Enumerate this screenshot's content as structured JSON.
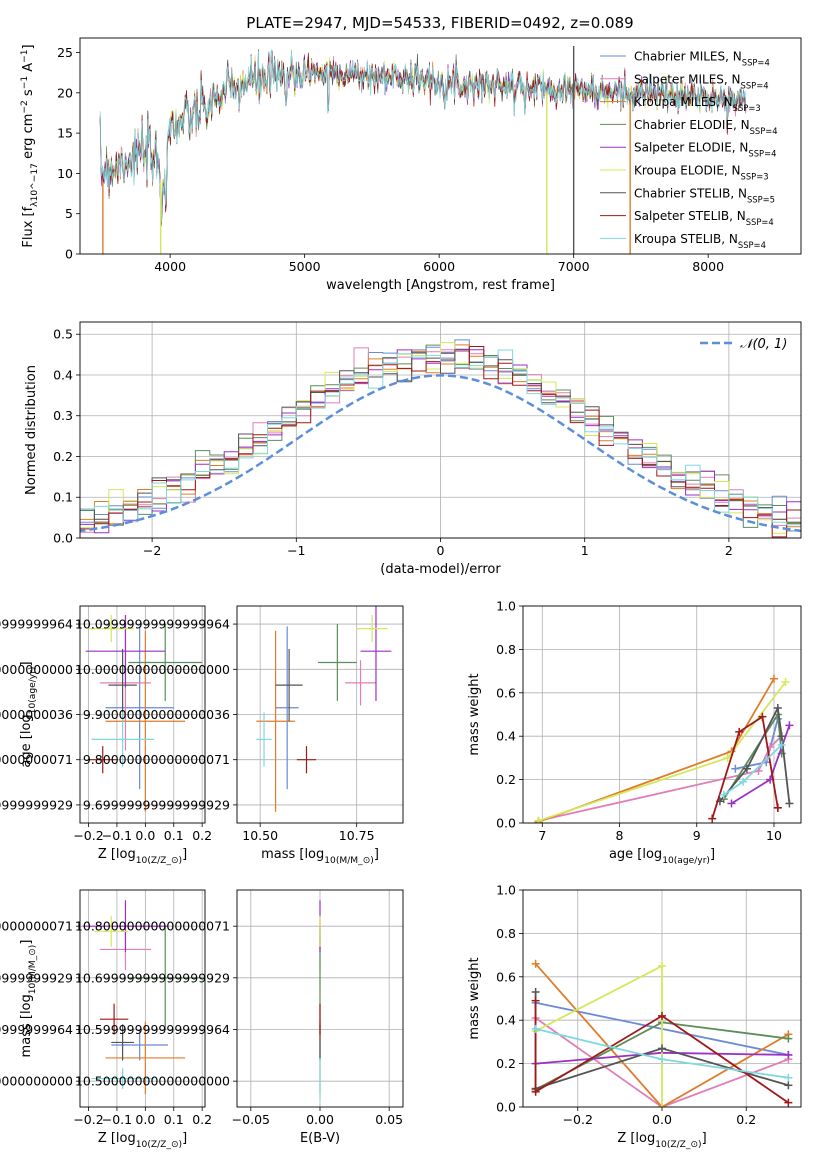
{
  "figure_title": "PLATE=2947, MJD=54533, FIBERID=0492, z=0.089",
  "colors": {
    "Chabrier MILES": "#6a8bd6",
    "Salpeter MILES": "#e07fb6",
    "Kroupa MILES": "#e07c2a",
    "Chabrier ELODIE": "#5c8c5c",
    "Salpeter ELODIE": "#9b30c6",
    "Kroupa ELODIE": "#d4e85a",
    "Chabrier STELIB": "#555555",
    "Salpeter STELIB": "#a01818",
    "Kroupa STELIB": "#7fd8e0",
    "normal": "#5b8fd9"
  },
  "chart_data": [
    {
      "id": "spectrum",
      "type": "line",
      "xlabel": "wavelength [Angstrom, rest frame]",
      "ylabel": "Flux [f_λ10^-17 erg cm^-2 s^-1 A^-1]",
      "xlim": [
        3330,
        8690
      ],
      "ylim": [
        0,
        26.8
      ],
      "xticks": [
        4000,
        5000,
        6000,
        7000,
        8000
      ],
      "yticks": [
        0,
        5,
        10,
        15,
        20,
        25
      ],
      "legend_placement": "upper right",
      "legend": [
        {
          "model": "Chabrier MILES",
          "nssp": "4"
        },
        {
          "model": "Salpeter MILES",
          "nssp": "4"
        },
        {
          "model": "Kroupa MILES",
          "nssp": "3"
        },
        {
          "model": "Chabrier ELODIE",
          "nssp": "4"
        },
        {
          "model": "Salpeter ELODIE",
          "nssp": "4"
        },
        {
          "model": "Kroupa ELODIE",
          "nssp": "3"
        },
        {
          "model": "Chabrier STELIB",
          "nssp": "5"
        },
        {
          "model": "Salpeter STELIB",
          "nssp": "4"
        },
        {
          "model": "Kroupa STELIB",
          "nssp": "4"
        }
      ],
      "continuum_x": [
        3480,
        3600,
        3700,
        3800,
        3900,
        3950,
        4000,
        4100,
        4200,
        4300,
        4400,
        4600,
        4800,
        5000,
        5200,
        5500,
        5800,
        6000,
        6200,
        6500,
        6800,
        7000,
        7200,
        7400,
        7600,
        7800,
        8000,
        8200
      ],
      "continuum_y": [
        10.5,
        11,
        12,
        12.5,
        11.5,
        9,
        16,
        16.5,
        17.5,
        18.5,
        20,
        21.5,
        22,
        22.5,
        22.5,
        22,
        22,
        21.5,
        21,
        21,
        20.5,
        20.5,
        20,
        20,
        20,
        19.5,
        19.5,
        19
      ]
    },
    {
      "id": "residuals",
      "type": "histogram",
      "xlabel": "(data-model)/error",
      "ylabel": "Normed distribution",
      "xlim": [
        -2.5,
        2.5
      ],
      "ylim": [
        0,
        0.53
      ],
      "xticks": [
        -2,
        -1,
        0,
        1,
        2
      ],
      "yticks": [
        0,
        0.1,
        0.2,
        0.3,
        0.4,
        0.5
      ],
      "legend": "N(0,1)",
      "bin_edges_start": -2.5,
      "bin_width": 0.1,
      "reference": {
        "type": "gaussian",
        "mean": 0,
        "sigma": 1
      }
    },
    {
      "id": "age_vs_Z",
      "type": "errorbar",
      "xlabel": "Z [log10(Z/Z⊙)]",
      "ylabel": "age [log10(age/yr)]",
      "xlim": [
        -0.23,
        0.21
      ],
      "ylim": [
        9.66,
        10.14
      ],
      "xticks": [
        -0.2,
        -0.1,
        0.0,
        0.1,
        0.2
      ],
      "yticks": [
        9.7,
        9.8,
        9.9,
        10.0,
        10.1
      ],
      "points": [
        {
          "model": "Chabrier MILES",
          "x": -0.02,
          "xerr": 0.12,
          "y": 9.915,
          "yerr": 0.18
        },
        {
          "model": "Salpeter MILES",
          "x": -0.07,
          "xerr": 0.09,
          "y": 9.97,
          "yerr": 0.15
        },
        {
          "model": "Kroupa MILES",
          "x": 0.0,
          "xerr": 0.14,
          "y": 9.885,
          "yerr": 0.2
        },
        {
          "model": "Chabrier ELODIE",
          "x": 0.07,
          "xerr": 0.13,
          "y": 10.015,
          "yerr": 0.085
        },
        {
          "model": "Salpeter ELODIE",
          "x": -0.07,
          "xerr": 0.14,
          "y": 10.04,
          "yerr": 0.08
        },
        {
          "model": "Kroupa ELODIE",
          "x": -0.12,
          "xerr": 0.08,
          "y": 10.09,
          "yerr": 0.03
        },
        {
          "model": "Chabrier STELIB",
          "x": -0.08,
          "xerr": 0.05,
          "y": 9.965,
          "yerr": 0.08
        },
        {
          "model": "Salpeter STELIB",
          "x": -0.15,
          "xerr": 0.05,
          "y": 9.8,
          "yerr": 0.03
        },
        {
          "model": "Kroupa STELIB",
          "x": -0.08,
          "xerr": 0.11,
          "y": 9.845,
          "yerr": 0.06
        }
      ]
    },
    {
      "id": "age_vs_mass",
      "type": "errorbar",
      "xlabel": "mass [log10(M/M⊙)]",
      "ylabel": "",
      "xlim": [
        10.44,
        10.87
      ],
      "ylim": [
        9.66,
        10.14
      ],
      "xticks": [
        10.5,
        10.75
      ],
      "yticks": [
        9.7,
        9.8,
        9.9,
        10.0,
        10.1
      ],
      "points": [
        {
          "model": "Chabrier MILES",
          "x": 10.57,
          "xerr": 0.03,
          "y": 9.915,
          "yerr": 0.18
        },
        {
          "model": "Salpeter MILES",
          "x": 10.76,
          "xerr": 0.04,
          "y": 9.97,
          "yerr": 0.05
        },
        {
          "model": "Kroupa MILES",
          "x": 10.54,
          "xerr": 0.05,
          "y": 9.885,
          "yerr": 0.2
        },
        {
          "model": "Chabrier ELODIE",
          "x": 10.7,
          "xerr": 0.05,
          "y": 10.015,
          "yerr": 0.085
        },
        {
          "model": "Salpeter ELODIE",
          "x": 10.8,
          "xerr": 0.04,
          "y": 10.04,
          "yerr": 0.11
        },
        {
          "model": "Kroupa ELODIE",
          "x": 10.79,
          "xerr": 0.04,
          "y": 10.09,
          "yerr": 0.03
        },
        {
          "model": "Chabrier STELIB",
          "x": 10.575,
          "xerr": 0.035,
          "y": 9.965,
          "yerr": 0.08
        },
        {
          "model": "Salpeter STELIB",
          "x": 10.62,
          "xerr": 0.025,
          "y": 9.8,
          "yerr": 0.03
        },
        {
          "model": "Kroupa STELIB",
          "x": 10.51,
          "xerr": 0.02,
          "y": 9.845,
          "yerr": 0.06
        }
      ]
    },
    {
      "id": "weight_vs_age",
      "type": "line",
      "xlabel": "age [log10(age/yr)]",
      "ylabel": "mass weight",
      "xlim": [
        6.75,
        10.35
      ],
      "ylim": [
        0,
        1
      ],
      "xticks": [
        7,
        8,
        9,
        10
      ],
      "yticks": [
        0.0,
        0.2,
        0.4,
        0.6,
        0.8,
        1.0
      ],
      "series": [
        {
          "model": "Chabrier MILES",
          "x": [
            9.5,
            9.9,
            10.05
          ],
          "y": [
            0.25,
            0.28,
            0.48
          ]
        },
        {
          "model": "Salpeter MILES",
          "x": [
            6.95,
            9.8,
            9.95,
            10.1
          ],
          "y": [
            0.01,
            0.24,
            0.35,
            0.4
          ]
        },
        {
          "model": "Kroupa MILES",
          "x": [
            6.95,
            9.45,
            10.0
          ],
          "y": [
            0.005,
            0.33,
            0.665
          ]
        },
        {
          "model": "Chabrier ELODIE",
          "x": [
            9.35,
            10.05,
            10.1
          ],
          "y": [
            0.11,
            0.5,
            0.32
          ]
        },
        {
          "model": "Salpeter ELODIE",
          "x": [
            9.45,
            9.95,
            10.2
          ],
          "y": [
            0.09,
            0.2,
            0.45
          ]
        },
        {
          "model": "Kroupa ELODIE",
          "x": [
            6.95,
            9.4,
            10.15
          ],
          "y": [
            0.01,
            0.3,
            0.65
          ]
        },
        {
          "model": "Chabrier STELIB",
          "x": [
            9.3,
            9.65,
            10.05,
            10.1,
            10.2
          ],
          "y": [
            0.1,
            0.25,
            0.53,
            0.4,
            0.09
          ]
        },
        {
          "model": "Salpeter STELIB",
          "x": [
            9.2,
            9.55,
            9.85,
            10.05,
            10.05
          ],
          "y": [
            0.02,
            0.42,
            0.49,
            0.07,
            0.07
          ]
        },
        {
          "model": "Kroupa STELIB",
          "x": [
            9.35,
            9.6,
            10.1
          ],
          "y": [
            0.13,
            0.19,
            0.36
          ]
        }
      ]
    },
    {
      "id": "mass_vs_Z",
      "type": "errorbar",
      "xlabel": "Z [log10(Z/Z⊙)]",
      "ylabel": "mass [log10(M/M⊙)]",
      "xlim": [
        -0.23,
        0.21
      ],
      "ylim": [
        10.45,
        10.87
      ],
      "xticks": [
        -0.2,
        -0.1,
        0.0,
        0.1,
        0.2
      ],
      "yticks": [
        10.5,
        10.6,
        10.7,
        10.8
      ],
      "points": [
        {
          "model": "Chabrier MILES",
          "x": -0.02,
          "xerr": 0.1,
          "y": 10.57,
          "yerr": 0.03
        },
        {
          "model": "Salpeter MILES",
          "x": -0.07,
          "xerr": 0.09,
          "y": 10.755,
          "yerr": 0.04
        },
        {
          "model": "Kroupa MILES",
          "x": 0.0,
          "xerr": 0.14,
          "y": 10.545,
          "yerr": 0.07
        },
        {
          "model": "Chabrier ELODIE",
          "x": 0.07,
          "xerr": 0.13,
          "y": 10.7,
          "yerr": 0.1
        },
        {
          "model": "Salpeter ELODIE",
          "x": -0.07,
          "xerr": 0.15,
          "y": 10.8,
          "yerr": 0.05
        },
        {
          "model": "Kroupa ELODIE",
          "x": -0.12,
          "xerr": 0.06,
          "y": 10.79,
          "yerr": 0.03
        },
        {
          "model": "Chabrier STELIB",
          "x": -0.08,
          "xerr": 0.04,
          "y": 10.575,
          "yerr": 0.035
        },
        {
          "model": "Salpeter STELIB",
          "x": -0.11,
          "xerr": 0.05,
          "y": 10.62,
          "yerr": 0.03
        },
        {
          "model": "Kroupa STELIB",
          "x": -0.08,
          "xerr": 0.11,
          "y": 10.505,
          "yerr": 0.02
        }
      ]
    },
    {
      "id": "mass_vs_ebv",
      "type": "errorbar",
      "xlabel": "E(B-V)",
      "ylabel": "",
      "xlim": [
        -0.06,
        0.06
      ],
      "ylim": [
        10.45,
        10.87
      ],
      "xticks": [
        -0.05,
        0.0,
        0.05
      ],
      "yticks": [
        10.5,
        10.6,
        10.7,
        10.8
      ],
      "points": [
        {
          "model": "Chabrier MILES",
          "x": 0,
          "xerr": 0,
          "y": 10.57,
          "yerr": 0.03
        },
        {
          "model": "Salpeter MILES",
          "x": 0,
          "xerr": 0,
          "y": 10.755,
          "yerr": 0.04
        },
        {
          "model": "Kroupa MILES",
          "x": 0,
          "xerr": 0,
          "y": 10.545,
          "yerr": 0.07
        },
        {
          "model": "Chabrier ELODIE",
          "x": 0,
          "xerr": 0,
          "y": 10.7,
          "yerr": 0.1
        },
        {
          "model": "Salpeter ELODIE",
          "x": 0,
          "xerr": 0,
          "y": 10.8,
          "yerr": 0.05
        },
        {
          "model": "Kroupa ELODIE",
          "x": 0,
          "xerr": 0,
          "y": 10.79,
          "yerr": 0.03
        },
        {
          "model": "Chabrier STELIB",
          "x": 0,
          "xerr": 0,
          "y": 10.575,
          "yerr": 0.035
        },
        {
          "model": "Salpeter STELIB",
          "x": 0,
          "xerr": 0,
          "y": 10.62,
          "yerr": 0.03
        },
        {
          "model": "Kroupa STELIB",
          "x": 0,
          "xerr": 0,
          "y": 10.505,
          "yerr": 0.04
        }
      ]
    },
    {
      "id": "weight_vs_Z",
      "type": "line",
      "xlabel": "Z [log10(Z/Z⊙)]",
      "ylabel": "mass weight",
      "xlim": [
        -0.33,
        0.33
      ],
      "ylim": [
        0,
        1
      ],
      "xticks": [
        -0.2,
        0.0,
        0.2
      ],
      "yticks": [
        0.0,
        0.2,
        0.4,
        0.6,
        0.8,
        1.0
      ],
      "series": [
        {
          "model": "Chabrier MILES",
          "x": [
            -0.3,
            0.3
          ],
          "y": [
            0.48,
            0.24
          ]
        },
        {
          "model": "Salpeter MILES",
          "x": [
            -0.3,
            0.0,
            0.3
          ],
          "y": [
            0.41,
            0.0,
            0.22
          ]
        },
        {
          "model": "Kroupa MILES",
          "x": [
            -0.3,
            0.0,
            0.3
          ],
          "y": [
            0.66,
            0.0,
            0.335
          ]
        },
        {
          "model": "Chabrier ELODIE",
          "x": [
            -0.3,
            0.0,
            0.3
          ],
          "y": [
            0.08,
            0.39,
            0.315
          ]
        },
        {
          "model": "Salpeter ELODIE",
          "x": [
            -0.3,
            0.0,
            0.3
          ],
          "y": [
            0.2,
            0.25,
            0.24
          ]
        },
        {
          "model": "Kroupa ELODIE",
          "x": [
            -0.3,
            0.0,
            0.0
          ],
          "y": [
            0.35,
            0.65,
            0.0
          ]
        },
        {
          "model": "Chabrier STELIB",
          "x": [
            -0.3,
            -0.3,
            0.0,
            0.3
          ],
          "y": [
            0.53,
            0.085,
            0.27,
            0.1
          ]
        },
        {
          "model": "Salpeter STELIB",
          "x": [
            -0.3,
            -0.3,
            0.0,
            0.3
          ],
          "y": [
            0.49,
            0.07,
            0.42,
            0.02
          ]
        },
        {
          "model": "Kroupa STELIB",
          "x": [
            -0.3,
            0.0,
            0.3
          ],
          "y": [
            0.36,
            0.22,
            0.135
          ]
        }
      ]
    }
  ]
}
